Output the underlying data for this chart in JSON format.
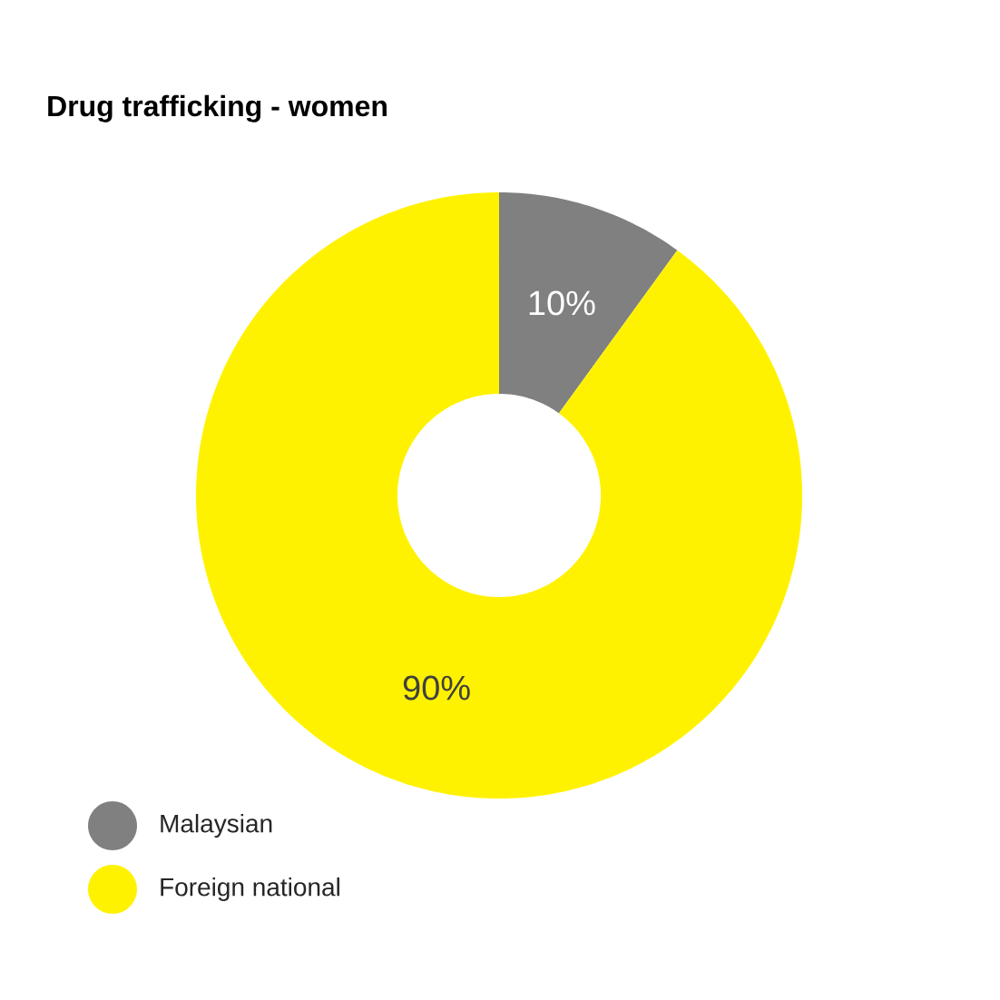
{
  "chart_data": {
    "type": "donut",
    "title": "Drug trafficking - women",
    "categories": [
      "Malaysian",
      "Foreign national"
    ],
    "values": [
      10,
      90
    ],
    "colors": [
      "#808080",
      "#fff200"
    ],
    "value_labels": [
      "10%",
      "90%"
    ],
    "legend": "bottom left"
  }
}
